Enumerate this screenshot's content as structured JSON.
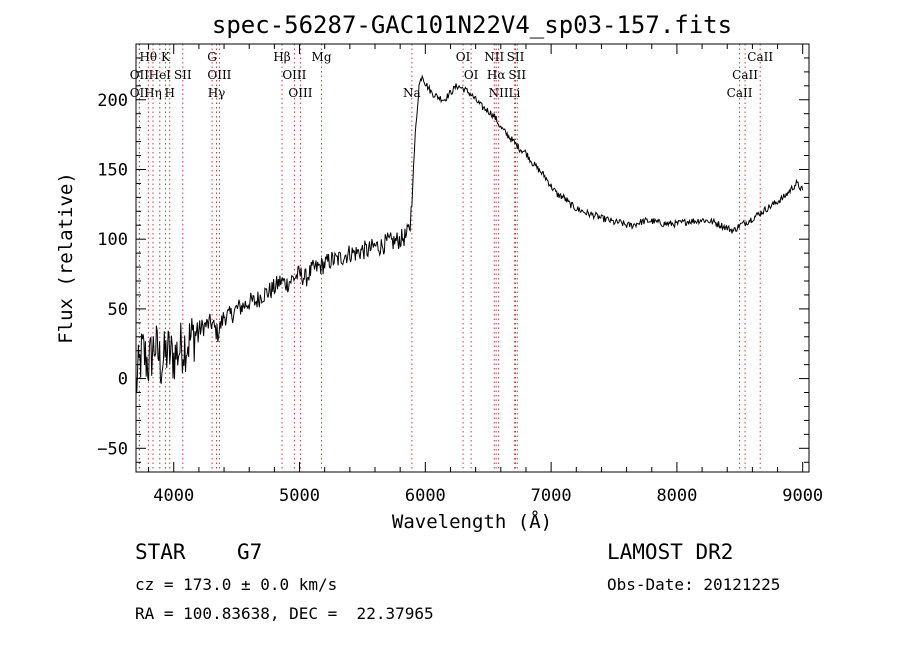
{
  "chart_data": {
    "type": "line",
    "title": "spec-56287-GAC101N22V4_sp03-157.fits",
    "xlabel": "Wavelength (Å)",
    "ylabel": "Flux (relative)",
    "xlim": [
      3700,
      9050
    ],
    "ylim": [
      -67,
      240
    ],
    "xticks": [
      4000,
      5000,
      6000,
      7000,
      8000,
      9000
    ],
    "yticks": [
      -50,
      0,
      50,
      100,
      150,
      200
    ],
    "grid": false,
    "series": [
      {
        "values_note": "",
        "x": [
          3700,
          3750,
          3800,
          3850,
          3900,
          3950,
          4000,
          4050,
          4100,
          4150,
          4200,
          4250,
          4300,
          4350,
          4400,
          4450,
          4500,
          4550,
          4600,
          4650,
          4700,
          4750,
          4800,
          4850,
          4900,
          4950,
          5000,
          5050,
          5100,
          5150,
          5200,
          5250,
          5300,
          5350,
          5400,
          5450,
          5500,
          5550,
          5600,
          5650,
          5700,
          5750,
          5800,
          5850,
          5880,
          5900,
          5920,
          5950,
          5975,
          6000,
          6050,
          6100,
          6150,
          6200,
          6250,
          6300,
          6350,
          6400,
          6450,
          6500,
          6550,
          6600,
          6650,
          6700,
          6750,
          6800,
          6850,
          6900,
          6950,
          7000,
          7050,
          7100,
          7150,
          7200,
          7250,
          7300,
          7350,
          7400,
          7450,
          7500,
          7550,
          7600,
          7650,
          7700,
          7750,
          7800,
          7850,
          7900,
          7950,
          8000,
          8050,
          8100,
          8150,
          8200,
          8250,
          8300,
          8350,
          8400,
          8450,
          8500,
          8550,
          8600,
          8650,
          8700,
          8750,
          8800,
          8850,
          8900,
          8950,
          9000
        ],
        "y": [
          -5,
          20,
          10,
          25,
          10,
          20,
          15,
          22,
          25,
          30,
          35,
          38,
          40,
          32,
          45,
          45,
          50,
          52,
          55,
          55,
          60,
          62,
          65,
          70,
          68,
          72,
          75,
          72,
          78,
          80,
          82,
          85,
          85,
          88,
          90,
          90,
          92,
          92,
          95,
          95,
          98,
          98,
          100,
          102,
          110,
          140,
          175,
          210,
          218,
          212,
          205,
          202,
          200,
          205,
          210,
          208,
          205,
          200,
          195,
          192,
          188,
          180,
          175,
          170,
          165,
          162,
          155,
          150,
          145,
          138,
          132,
          130,
          125,
          122,
          120,
          118,
          117,
          115,
          114,
          112,
          112,
          110,
          110,
          112,
          113,
          113,
          112,
          111,
          111,
          111,
          112,
          113,
          113,
          114,
          113,
          112,
          110,
          108,
          106,
          110,
          112,
          115,
          118,
          121,
          124,
          127,
          130,
          135,
          140,
          135
        ]
      }
    ],
    "spectral_lines": [
      {
        "label": "Hθ",
        "x": 3798,
        "row": 0
      },
      {
        "label": "K",
        "x": 3934,
        "row": 0
      },
      {
        "label": "G",
        "x": 4305,
        "row": 0
      },
      {
        "label": "Hβ",
        "x": 4861,
        "row": 0
      },
      {
        "label": "Mg",
        "x": 5175,
        "row": 0
      },
      {
        "label": "OI",
        "x": 6300,
        "row": 0
      },
      {
        "label": "NII",
        "x": 6548,
        "row": 0
      },
      {
        "label": "SII",
        "x": 6717,
        "row": 0
      },
      {
        "label": "CaII",
        "x": 8662,
        "row": 0
      },
      {
        "label": "OII",
        "x": 3727,
        "row": 1
      },
      {
        "label": "HeI",
        "x": 3889,
        "row": 1
      },
      {
        "label": "SII",
        "x": 4072,
        "row": 1
      },
      {
        "label": "OIII",
        "x": 4363,
        "row": 1
      },
      {
        "label": "OIII",
        "x": 4959,
        "row": 1
      },
      {
        "label": "OI",
        "x": 6364,
        "row": 1
      },
      {
        "label": "Hα",
        "x": 6563,
        "row": 1
      },
      {
        "label": "SII",
        "x": 6731,
        "row": 1
      },
      {
        "label": "CaII",
        "x": 8542,
        "row": 1
      },
      {
        "label": "OII",
        "x": 3727,
        "row": 2
      },
      {
        "label": "Hη",
        "x": 3835,
        "row": 2
      },
      {
        "label": "H",
        "x": 3968,
        "row": 2
      },
      {
        "label": "Hγ",
        "x": 4340,
        "row": 2
      },
      {
        "label": "OIII",
        "x": 5007,
        "row": 2
      },
      {
        "label": "Na",
        "x": 5893,
        "row": 2
      },
      {
        "label": "NII",
        "x": 6583,
        "row": 2
      },
      {
        "label": "Li",
        "x": 6708,
        "row": 2
      },
      {
        "label": "CaII",
        "x": 8498,
        "row": 2
      }
    ]
  },
  "info": {
    "class_label": "STAR",
    "subclass": "G7",
    "survey": "LAMOST DR2",
    "cz": "cz = 173.0 ± 0.0 km/s",
    "obs_date": "Obs-Date: 20121225",
    "coords": "RA = 100.83638, DEC =  22.37965"
  },
  "colors": {
    "spectrum": "#000000",
    "line_markers": "#c04040",
    "axes": "#000000"
  }
}
